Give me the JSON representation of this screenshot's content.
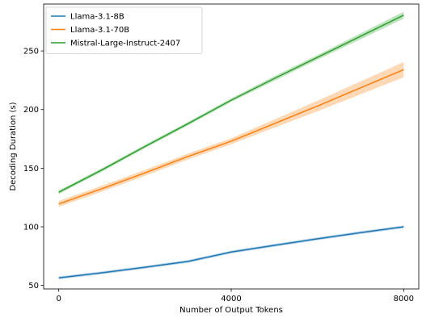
{
  "chart_data": {
    "type": "line",
    "xlabel": "Number of Output Tokens",
    "ylabel": "Decoding Duration (s)",
    "xlim": [
      -350,
      8350
    ],
    "ylim": [
      47,
      290
    ],
    "xticks": [
      0,
      4000,
      8000
    ],
    "yticks": [
      50,
      100,
      150,
      200,
      250
    ],
    "grid": false,
    "legend_position": "top-left",
    "series": [
      {
        "name": "Llama-3.1-8B",
        "color": "#1f77b4",
        "x": [
          0,
          1000,
          2000,
          3000,
          4000,
          5000,
          6000,
          7000,
          8000
        ],
        "y": [
          56.5,
          60.8,
          65.5,
          70.5,
          78.5,
          84.2,
          89.8,
          95.0,
          100.0
        ],
        "band": 1.2
      },
      {
        "name": "Llama-3.1-70B",
        "color": "#ff7f0e",
        "x": [
          0,
          1000,
          2000,
          3000,
          4000,
          5000,
          6000,
          7000,
          8000
        ],
        "y": [
          119.5,
          132.5,
          146.0,
          160.0,
          173.0,
          188.0,
          203.0,
          218.5,
          234.0
        ],
        "band_lower": [
          2.5,
          2.5,
          2.5,
          2.5,
          2.5,
          3.5,
          4.5,
          5.5,
          6.5
        ],
        "band_upper": [
          2.5,
          2.5,
          2.5,
          2.5,
          2.5,
          3.5,
          4.5,
          5.5,
          6.5
        ]
      },
      {
        "name": "Mistral-Large-Instruct-2407",
        "color": "#2ca02c",
        "x": [
          0,
          1000,
          2000,
          3000,
          4000,
          5000,
          6000,
          7000,
          8000
        ],
        "y": [
          129.5,
          148.5,
          168.5,
          188.0,
          208.0,
          226.5,
          244.5,
          262.5,
          280.5
        ],
        "band_lower": [
          1.5,
          1.5,
          1.5,
          1.5,
          1.5,
          2.0,
          2.0,
          2.5,
          3.0
        ],
        "band_upper": [
          1.5,
          1.5,
          1.5,
          1.5,
          1.5,
          2.0,
          2.0,
          2.5,
          3.0
        ]
      }
    ]
  }
}
